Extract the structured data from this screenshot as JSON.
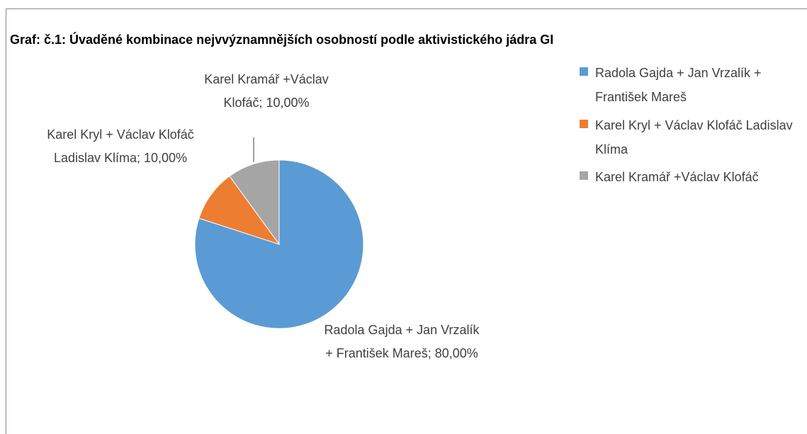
{
  "chart_data": {
    "type": "pie",
    "title": "Graf: č.1: Úvaděné kombinace nejvvýznamnějších osobností podle aktivistického jádra GI",
    "categories": [
      "Radola Gajda + Jan Vrzalík + František Mareš",
      "Karel Kryl + Václav Klofáč Ladislav Klíma",
      "Karel Kramář +Václav Klofáč"
    ],
    "values": [
      80,
      10,
      10
    ],
    "value_labels": [
      "Radola Gajda + Jan Vrzalík + František Mareš; 80,00%",
      "Karel Kryl + Václav Klofáč Ladislav Klíma; 10,00%",
      "Karel Kramář +Václav Klofáč; 10,00%"
    ],
    "colors": [
      "#5b9bd5",
      "#ed7d31",
      "#a5a5a5"
    ],
    "legend": "right"
  }
}
